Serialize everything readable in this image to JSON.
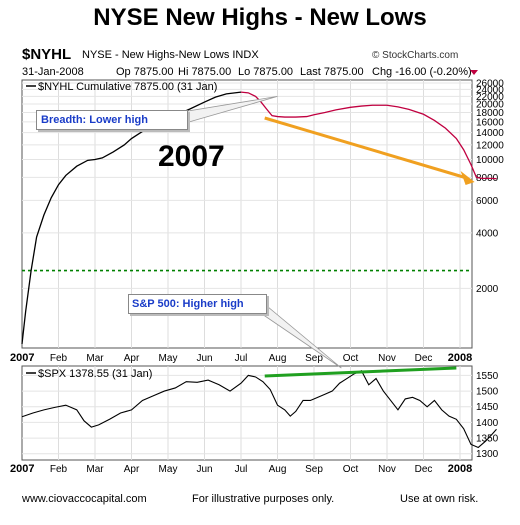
{
  "page_title": "NYSE New Highs - New Lows",
  "header": {
    "symbol": "$NYHL",
    "description": "NYSE - New Highs-New Lows INDX",
    "brand": "© StockCharts.com",
    "date": "31-Jan-2008",
    "open": "Op 7875.00",
    "high": "Hi 7875.00",
    "low": "Lo 7875.00",
    "last": "Last 7875.00",
    "change": "Chg -16.00 (-0.20%)"
  },
  "footer": {
    "site": "www.ciovaccocapital.com",
    "note": "For illustrative purposes only.",
    "risk": "Use at own risk."
  },
  "annotations": {
    "big_year": "2007",
    "breadth_callout": "Breadth:  Lower high",
    "sp_callout": "S&P 500: Higher high"
  },
  "colors": {
    "up_line": "#000000",
    "down_line": "#c00040",
    "arrow": "#f0a020",
    "trend": "#20a020",
    "callout_text": "#1a3cc8",
    "ref_line": "#008000"
  },
  "chart_data": [
    {
      "type": "line",
      "legend": "$NYHL Cumulative 7875.00 (31 Jan)",
      "scale": "log",
      "x_tick_labels": [
        "2007",
        "Feb",
        "Mar",
        "Apr",
        "May",
        "Jun",
        "Jul",
        "Aug",
        "Sep",
        "Oct",
        "Nov",
        "Dec",
        "2008"
      ],
      "y_tick_labels": [
        "26000",
        "24000",
        "22000",
        "20000",
        "18000",
        "16000",
        "14000",
        "12000",
        "10000",
        "8000",
        "6000",
        "4000",
        "2000"
      ],
      "ylim": [
        950,
        27000
      ],
      "reference_line": 2500,
      "x": [
        0,
        0.1,
        0.25,
        0.4,
        0.6,
        0.8,
        1.0,
        1.2,
        1.5,
        1.8,
        2.0,
        2.2,
        2.5,
        2.8,
        3.0,
        3.3,
        3.6,
        4.0,
        4.3,
        4.6,
        5.0,
        5.3,
        5.6,
        6.0,
        6.2,
        6.4,
        6.55,
        6.7,
        6.85,
        7.0,
        7.2,
        7.5,
        7.8,
        8.0,
        8.3,
        8.6,
        9.0,
        9.3,
        9.6,
        10.0,
        10.3,
        10.6,
        11.0,
        11.3,
        11.6,
        11.9,
        12.1,
        12.3,
        12.45,
        12.6,
        12.8,
        13.0
      ],
      "y": [
        1000,
        1500,
        2500,
        3800,
        5000,
        6200,
        7300,
        8200,
        9200,
        9900,
        10000,
        10200,
        11000,
        12000,
        13000,
        14200,
        15300,
        16500,
        17700,
        18800,
        20500,
        21800,
        22700,
        23200,
        23000,
        22000,
        20500,
        18800,
        17300,
        17100,
        17000,
        17000,
        17100,
        17500,
        18000,
        18600,
        19200,
        19500,
        19700,
        19700,
        19300,
        18700,
        17600,
        16300,
        14800,
        13000,
        11300,
        9400,
        8000,
        7900,
        7900,
        7875
      ]
    },
    {
      "type": "line",
      "legend": "$SPX 1378.55 (31 Jan)",
      "x_tick_labels": [
        "2007",
        "Feb",
        "Mar",
        "Apr",
        "May",
        "Jun",
        "Jul",
        "Aug",
        "Sep",
        "Oct",
        "Nov",
        "Dec",
        "2008"
      ],
      "y_tick_labels": [
        "1550",
        "1500",
        "1450",
        "1400",
        "1350",
        "1300"
      ],
      "ylim": [
        1280,
        1580
      ],
      "x": [
        0,
        0.3,
        0.6,
        0.9,
        1.2,
        1.5,
        1.7,
        1.9,
        2.1,
        2.4,
        2.7,
        3.0,
        3.3,
        3.6,
        3.9,
        4.2,
        4.5,
        4.8,
        5.1,
        5.4,
        5.7,
        6.0,
        6.2,
        6.4,
        6.6,
        6.8,
        7.0,
        7.2,
        7.35,
        7.5,
        7.7,
        7.9,
        8.1,
        8.3,
        8.5,
        8.7,
        8.9,
        9.1,
        9.3,
        9.5,
        9.7,
        9.9,
        10.1,
        10.3,
        10.5,
        10.7,
        10.9,
        11.1,
        11.3,
        11.5,
        11.7,
        11.9,
        12.1,
        12.3,
        12.5,
        12.7,
        12.9,
        13.0
      ],
      "y": [
        1418,
        1430,
        1440,
        1448,
        1455,
        1440,
        1405,
        1385,
        1392,
        1410,
        1430,
        1440,
        1470,
        1485,
        1500,
        1510,
        1530,
        1528,
        1535,
        1520,
        1500,
        1525,
        1550,
        1545,
        1530,
        1505,
        1455,
        1440,
        1420,
        1435,
        1470,
        1470,
        1480,
        1490,
        1500,
        1525,
        1540,
        1555,
        1565,
        1520,
        1540,
        1500,
        1470,
        1440,
        1475,
        1480,
        1470,
        1450,
        1470,
        1440,
        1420,
        1410,
        1380,
        1330,
        1320,
        1340,
        1365,
        1378
      ]
    }
  ]
}
